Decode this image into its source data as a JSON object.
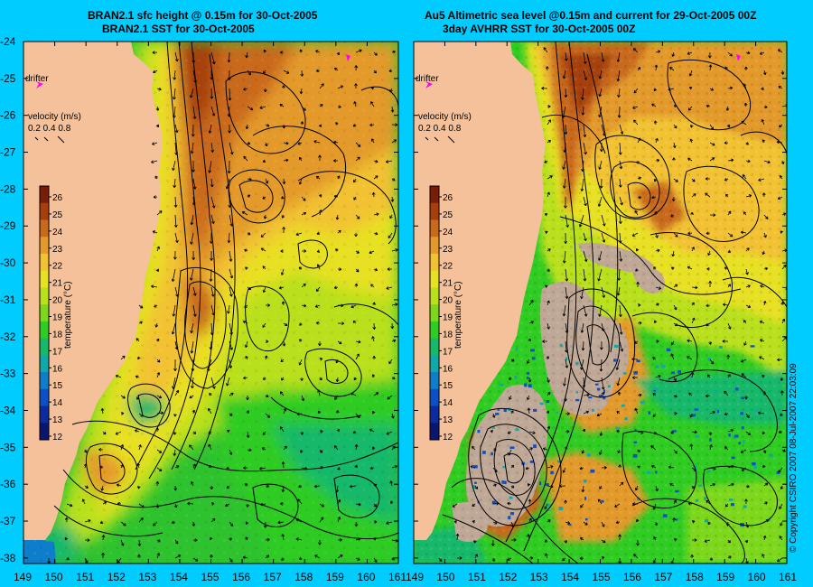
{
  "left_panel": {
    "title_line1": "BRAN2.1 sfc height @ 0.15m for 30-Oct-2005",
    "title_line2": "BRAN2.1 SST for 30-Oct-2005"
  },
  "right_panel": {
    "title_line1": "Au5 Altimetric sea level  @0.15m and current for 29-Oct-2005 00Z",
    "title_line2": "3day AVHRR SST for 30-Oct-2005 00Z"
  },
  "drifter_label": "drifter",
  "velocity_legend": {
    "title": "velocity (m/s)",
    "values": "0.2 0.4 0.8"
  },
  "colorbar": {
    "label": "temperature (°C)",
    "ticks": [
      "26",
      "25",
      "24",
      "23",
      "22",
      "21",
      "20",
      "19",
      "18",
      "17",
      "16",
      "15",
      "14",
      "13",
      "12"
    ],
    "colors": [
      "#7a1d05",
      "#a63f0c",
      "#c9691a",
      "#e39a2a",
      "#f2c230",
      "#e8e020",
      "#b9e01a",
      "#7dd81a",
      "#2fcc22",
      "#18b86a",
      "#10a8a8",
      "#0e7ecc",
      "#0b50c8",
      "#0a2c9c",
      "#0b1670"
    ]
  },
  "longitude_ticks": [
    "149",
    "150",
    "151",
    "152",
    "153",
    "154",
    "155",
    "156",
    "157",
    "158",
    "159",
    "160",
    "161"
  ],
  "latitude_ticks": [
    "-24",
    "-25",
    "-26",
    "-27",
    "-28",
    "-29",
    "-30",
    "-31",
    "-32",
    "-33",
    "-34",
    "-35",
    "-36",
    "-37",
    "-38"
  ],
  "copyright": "© Copyright CSIRO 2007 08-Jul-2007 22:03:09",
  "colors": {
    "background": "#00ccff",
    "land": "#f5c19a",
    "drifter": "#ff00ff",
    "missing": "#c0a896"
  }
}
